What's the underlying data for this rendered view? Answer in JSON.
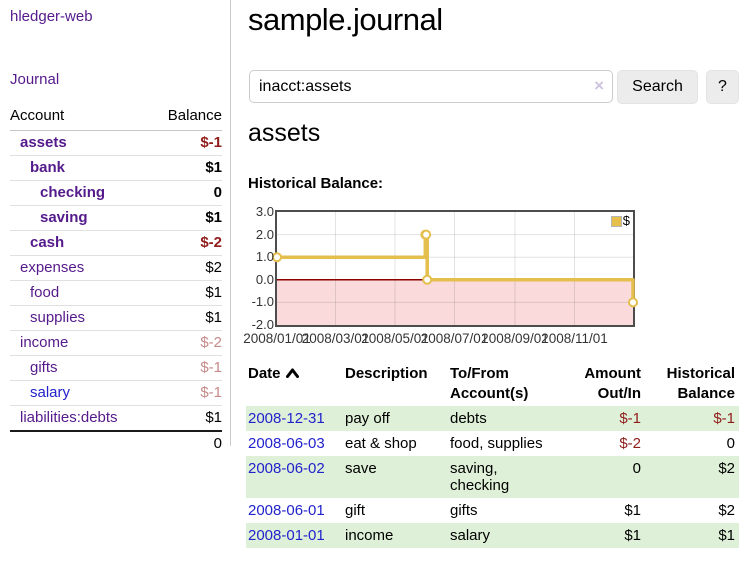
{
  "sidebar": {
    "brand": "hledger-web",
    "journal_link": "Journal",
    "accounts_table": {
      "columns": [
        "Account",
        "Balance"
      ],
      "rows": [
        {
          "name": "assets",
          "indent": 0,
          "bold": true,
          "balance": "$-1",
          "balance_style": "neg"
        },
        {
          "name": "bank",
          "indent": 1,
          "bold": true,
          "balance": "$1",
          "balance_style": "pos"
        },
        {
          "name": "checking",
          "indent": 2,
          "bold": true,
          "balance": "0",
          "balance_style": "pos"
        },
        {
          "name": "saving",
          "indent": 2,
          "bold": true,
          "balance": "$1",
          "balance_style": "pos"
        },
        {
          "name": "cash",
          "indent": 1,
          "bold": true,
          "balance": "$-2",
          "balance_style": "neg"
        },
        {
          "name": "expenses",
          "indent": 0,
          "bold": false,
          "balance": "$2",
          "balance_style": "pos"
        },
        {
          "name": "food",
          "indent": 1,
          "bold": false,
          "balance": "$1",
          "balance_style": "pos"
        },
        {
          "name": "supplies",
          "indent": 1,
          "bold": false,
          "balance": "$1",
          "balance_style": "pos"
        },
        {
          "name": "income",
          "indent": 0,
          "bold": false,
          "balance": "$-2",
          "balance_style": "neg-muted"
        },
        {
          "name": "gifts",
          "indent": 1,
          "bold": false,
          "balance": "$-1",
          "balance_style": "neg-muted"
        },
        {
          "name": "salary",
          "indent": 1,
          "bold": false,
          "balance": "$-1",
          "balance_style": "neg-muted",
          "link_style": "unvisited"
        },
        {
          "name": "liabilities:debts",
          "indent": 0,
          "bold": false,
          "balance": "$1",
          "balance_style": "pos"
        }
      ],
      "total": "0"
    }
  },
  "header": {
    "title": "sample.journal"
  },
  "search": {
    "value": "inacct:assets",
    "clear_icon": "×",
    "button": "Search",
    "help": "?"
  },
  "main": {
    "account_heading": "assets",
    "chart_label": "Historical Balance:"
  },
  "chart_data": {
    "type": "line",
    "step": true,
    "title": "Historical Balance:",
    "series": [
      {
        "name": "$",
        "points": [
          [
            "2008-01-01",
            1
          ],
          [
            "2008-06-01",
            2
          ],
          [
            "2008-06-02",
            2
          ],
          [
            "2008-06-03",
            0
          ],
          [
            "2008-12-31",
            -1
          ]
        ]
      }
    ],
    "x_range": [
      "2008-01-01",
      "2008-12-31"
    ],
    "ylim": [
      -2,
      3
    ],
    "yticks": [
      3.0,
      2.0,
      1.0,
      0.0,
      -1.0,
      -2.0
    ],
    "xtick_labels": [
      "2008/01/01",
      "2008/03/01",
      "2008/05/01",
      "2008/07/01",
      "2008/09/01",
      "2008/11/01"
    ],
    "legend": "$",
    "legend_position": "top-right",
    "grid": true,
    "colors": {
      "line": "#e5bf4d",
      "marker_fill": "#ffffff",
      "negative_region_fill": "#fadada",
      "zero_line": "#8b0000",
      "border": "#4d4d4d"
    }
  },
  "register_table": {
    "columns": [
      {
        "lines": [
          "Date"
        ],
        "align": "left",
        "sorted": "asc"
      },
      {
        "lines": [
          "Description"
        ],
        "align": "left"
      },
      {
        "lines": [
          "To/From",
          "Account(s)"
        ],
        "align": "left"
      },
      {
        "lines": [
          "Amount",
          "Out/In"
        ],
        "align": "right"
      },
      {
        "lines": [
          "Historical",
          "Balance"
        ],
        "align": "right"
      }
    ],
    "rows": [
      {
        "date": "2008-12-31",
        "description": "pay off",
        "accounts_lines": [
          "debts"
        ],
        "amount": "$-1",
        "amount_style": "neg",
        "balance": "$-1",
        "balance_style": "neg",
        "row_bg": "green"
      },
      {
        "date": "2008-06-03",
        "description": "eat & shop",
        "accounts_lines": [
          "food, supplies"
        ],
        "amount": "$-2",
        "amount_style": "neg",
        "balance": "0",
        "balance_style": "pos",
        "row_bg": "white"
      },
      {
        "date": "2008-06-02",
        "description": "save",
        "accounts_lines": [
          "saving,",
          "checking"
        ],
        "amount": "0",
        "amount_style": "pos",
        "balance": "$2",
        "balance_style": "pos",
        "row_bg": "green"
      },
      {
        "date": "2008-06-01",
        "description": "gift",
        "accounts_lines": [
          "gifts"
        ],
        "amount": "$1",
        "amount_style": "pos",
        "balance": "$2",
        "balance_style": "pos",
        "row_bg": "white"
      },
      {
        "date": "2008-01-01",
        "description": "income",
        "accounts_lines": [
          "salary"
        ],
        "amount": "$1",
        "amount_style": "pos",
        "balance": "$1",
        "balance_style": "pos",
        "row_bg": "green"
      }
    ]
  },
  "colors": {
    "link_visited_purple": "#551a8b",
    "link_blue": "#2222cc",
    "negative_strong": "#8f1d1b",
    "negative_muted": "#c68989",
    "row_green": "#dff0d8",
    "button_gray": "#ececec"
  }
}
